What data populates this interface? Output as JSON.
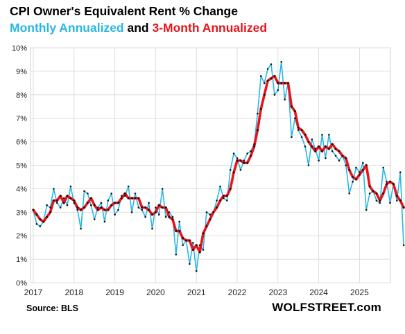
{
  "header": {
    "title": "CPI Owner's Equivalent Rent % Change",
    "subtitle_monthly": "Monthly Annualized",
    "subtitle_and": " and ",
    "subtitle_three": "3-Month Annualized"
  },
  "footer": {
    "source": "Source: BLS",
    "brand": "WOLFSTREET.com"
  },
  "colors": {
    "monthly": "#29b6e6",
    "three_month": "#e8141c",
    "markers": "#111111",
    "grid": "#dddddd"
  },
  "chart_data": {
    "type": "line",
    "title": "CPI Owner's Equivalent Rent % Change",
    "xlabel": "",
    "ylabel": "",
    "x_start": "2017-01",
    "x_ticks": [
      "2017",
      "2018",
      "2019",
      "2020",
      "2021",
      "2022",
      "2023",
      "2024",
      "2025"
    ],
    "y_ticks": [
      "0%",
      "1%",
      "2%",
      "3%",
      "4%",
      "5%",
      "6%",
      "7%",
      "8%",
      "9%",
      "10%"
    ],
    "ylim": [
      0,
      10
    ],
    "grid": true,
    "series": [
      {
        "name": "Monthly Annualized",
        "values": [
          3.1,
          2.5,
          2.4,
          2.6,
          3.3,
          3.2,
          4.0,
          3.4,
          3.2,
          3.6,
          3.3,
          4.1,
          3.4,
          3.1,
          2.3,
          3.9,
          3.8,
          3.3,
          2.7,
          3.2,
          3.4,
          2.6,
          3.5,
          3.8,
          2.9,
          3.1,
          3.7,
          3.7,
          4.1,
          3.0,
          3.8,
          3.2,
          3.1,
          2.8,
          3.4,
          2.3,
          3.2,
          2.9,
          4.0,
          2.8,
          3.0,
          2.8,
          1.2,
          2.6,
          1.6,
          1.8,
          0.8,
          1.7,
          0.5,
          1.6,
          1.4,
          3.0,
          2.9,
          3.0,
          3.5,
          4.1,
          3.6,
          3.5,
          4.8,
          5.5,
          5.3,
          4.8,
          5.2,
          5.5,
          5.6,
          5.9,
          7.2,
          8.8,
          8.5,
          9.1,
          9.3,
          8.0,
          8.2,
          9.4,
          7.8,
          8.5,
          6.2,
          7.0,
          6.5,
          6.2,
          5.8,
          5.0,
          6.1,
          5.7,
          5.2,
          6.3,
          5.3,
          6.3,
          5.6,
          5.4,
          5.2,
          5.4,
          5.0,
          3.8,
          4.3,
          4.9,
          4.7,
          5.1,
          3.1,
          3.8,
          3.9,
          3.5,
          3.4,
          4.9,
          4.3,
          3.4,
          4.2,
          3.5,
          4.7,
          1.6
        ]
      },
      {
        "name": "3-Month Annualized",
        "values": [
          3.1,
          2.9,
          2.7,
          2.6,
          2.8,
          3.0,
          3.5,
          3.5,
          3.7,
          3.4,
          3.7,
          3.6,
          3.5,
          3.2,
          3.1,
          3.2,
          3.4,
          3.6,
          3.3,
          3.1,
          3.2,
          3.1,
          3.1,
          3.3,
          3.4,
          3.4,
          3.6,
          3.8,
          3.6,
          3.6,
          3.6,
          3.6,
          3.2,
          3.2,
          3.1,
          2.9,
          3.0,
          3.3,
          3.2,
          3.2,
          2.8,
          2.7,
          2.2,
          2.2,
          1.9,
          1.8,
          1.8,
          1.4,
          1.6,
          1.3,
          2.1,
          2.4,
          2.7,
          3.0,
          3.2,
          3.5,
          3.7,
          3.7,
          4.0,
          4.7,
          5.2,
          5.2,
          5.1,
          5.1,
          5.4,
          5.8,
          6.5,
          7.4,
          8.0,
          8.6,
          8.7,
          8.8,
          8.5,
          8.5,
          8.5,
          8.5,
          7.5,
          7.3,
          6.6,
          6.5,
          6.3,
          6.0,
          5.8,
          5.6,
          5.8,
          5.6,
          5.8,
          5.7,
          5.9,
          5.7,
          5.6,
          5.4,
          5.3,
          4.8,
          4.5,
          4.4,
          4.6,
          4.8,
          5.0,
          4.1,
          3.9,
          3.8,
          3.5,
          3.8,
          4.2,
          4.3,
          4.2,
          3.7,
          3.5,
          3.2
        ]
      }
    ]
  }
}
